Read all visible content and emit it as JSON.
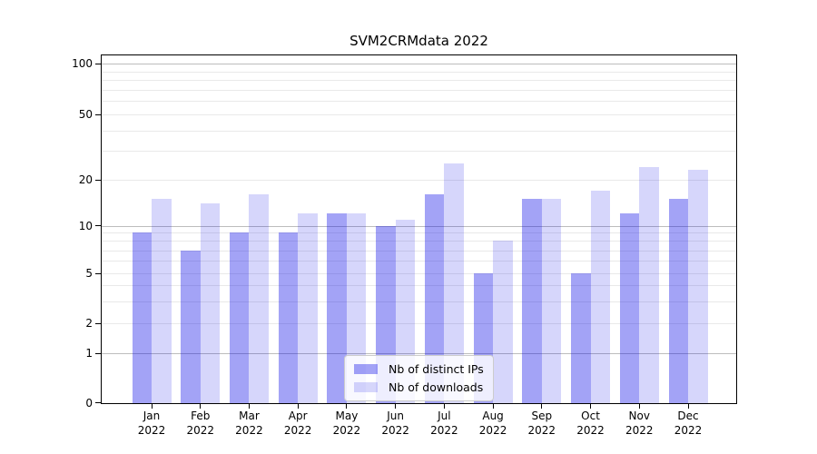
{
  "chart": {
    "colors": {
      "ips_fill": "#0000e65c",
      "downloads_fill": "#0000e629"
    }
  },
  "chart_data": {
    "type": "bar",
    "title": "SVM2CRMdata 2022",
    "categories": [
      "Jan 2022",
      "Feb 2022",
      "Mar 2022",
      "Apr 2022",
      "May 2022",
      "Jun 2022",
      "Jul 2022",
      "Aug 2022",
      "Sep 2022",
      "Oct 2022",
      "Nov 2022",
      "Dec 2022"
    ],
    "series": [
      {
        "name": "Nb of distinct IPs",
        "values": [
          9,
          7,
          9,
          9,
          12,
          10,
          16,
          5,
          15,
          5,
          12,
          15
        ]
      },
      {
        "name": "Nb of downloads",
        "values": [
          15,
          14,
          16,
          12,
          12,
          11,
          25,
          8,
          15,
          17,
          24,
          23
        ]
      }
    ],
    "xlabel": "",
    "ylabel": "",
    "yscale": "symlog",
    "ylim": [
      0,
      100
    ],
    "y_ticks": [
      100,
      50,
      20,
      10,
      5,
      2,
      1,
      0
    ],
    "grid": true,
    "legend_position": "lower center"
  }
}
